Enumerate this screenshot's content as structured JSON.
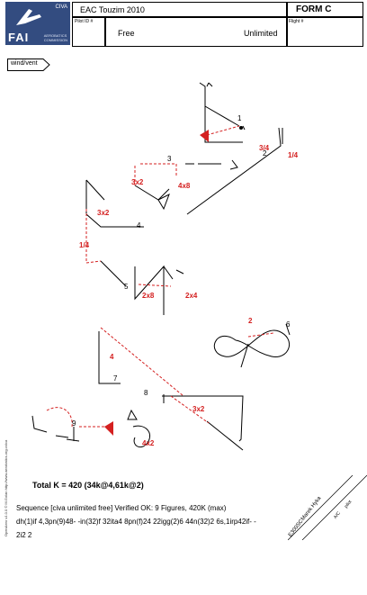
{
  "header": {
    "title": "EAC Touzim 2010",
    "form_label": "FORM  C",
    "pilot_id_label": "Pilot ID #",
    "flight_label": "Flight #",
    "category": "Free",
    "class": "Unlimited"
  },
  "logo": {
    "fai": "FAI",
    "cima": "CIVA",
    "commission_line1": "AEROBATICS",
    "commission_line2": "COMMISSION"
  },
  "wind_label": "wind/vent",
  "figures": {
    "numbers": [
      "1",
      "2",
      "3",
      "4",
      "5",
      "6",
      "7",
      "8",
      "9"
    ],
    "red_labels": [
      "3/4",
      "1/4",
      "3x2",
      "4x8",
      "3x2",
      "1/4",
      "2x8",
      "2x4",
      "2",
      "4",
      "3x2",
      "4x2"
    ]
  },
  "total": "Total K = 420 (34k@4,61k@2)",
  "sequence_line1": "Sequence [civa unlimited free] Verified OK: 9 Figures, 420K (max)",
  "sequence_line2": "dh(1)if  4,3pn(9)48-  -in(32)f  32ita4  8pn(f)24  22igg(2)6  44n(32)2  6s,1irp42if-  -",
  "sequence_line3": "2i2 2",
  "side_text": "OpenAero v1.0.0 © M.Golan http://www.aerobatics.org.cn/ca",
  "signature": {
    "name": "Marek Hyka",
    "aircraft": "E300SC",
    "pilot_label": "pilot",
    "ac_label": "A/C"
  },
  "colors": {
    "red": "#d42020",
    "logo_blue": "#334c80"
  }
}
